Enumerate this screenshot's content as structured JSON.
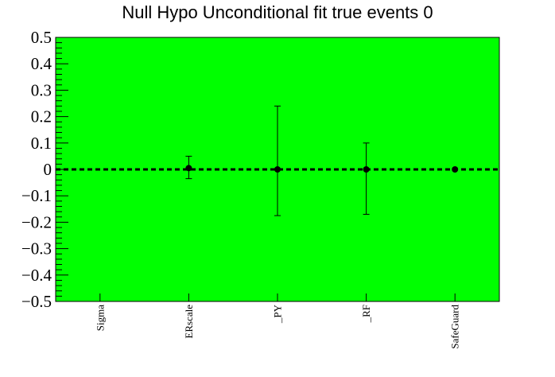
{
  "chart_data": {
    "type": "scatter",
    "title": "Null Hypo Unconditional fit true events 0",
    "xlabel": "",
    "ylabel": "",
    "categories": [
      "Sigma",
      "ERscale",
      "_PY",
      "_RF",
      "SafeGuard"
    ],
    "ylim": [
      -0.5,
      0.5
    ],
    "yticks": [
      0.5,
      0.4,
      0.3,
      0.2,
      0.1,
      0,
      -0.1,
      -0.2,
      -0.3,
      -0.4,
      -0.5
    ],
    "ytick_labels": [
      "0.5",
      "0.4",
      "0.3",
      "0.2",
      "0.1",
      "0",
      "−0.1",
      "−0.2",
      "−0.3",
      "−0.4",
      "−0.5"
    ],
    "points": [
      {
        "category": "ERscale",
        "value": 0.005,
        "err_low": 0.04,
        "err_high": 0.045
      },
      {
        "category": "_PY",
        "value": 0.0,
        "err_low": 0.175,
        "err_high": 0.24
      },
      {
        "category": "_RF",
        "value": 0.0,
        "err_low": 0.17,
        "err_high": 0.1
      },
      {
        "category": "SafeGuard",
        "value": 0.0,
        "err_low": 0.0,
        "err_high": 0.0
      }
    ],
    "reference_line": 0,
    "grid": false,
    "colors": {
      "plot_background": "#00ff00",
      "marker": "#000000",
      "reference_line": "#000000",
      "page_background": "#ffffff"
    }
  }
}
